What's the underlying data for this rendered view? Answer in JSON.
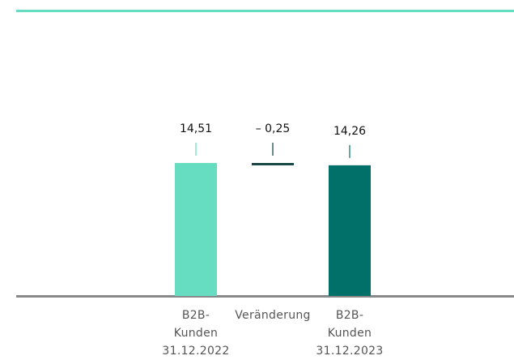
{
  "chart_data": {
    "type": "waterfall",
    "categories": [
      [
        "B2B-",
        "Kunden",
        "31.12.2022"
      ],
      [
        "Veränderung"
      ],
      [
        "B2B-",
        "Kunden",
        "31.12.2023"
      ]
    ],
    "values": [
      14.51,
      -0.25,
      14.26
    ],
    "value_labels": [
      "14,51",
      "– 0,25",
      "14,26"
    ],
    "colors": [
      "#66ddc0",
      "#0b3d3d",
      "#007068"
    ],
    "ylim": [
      0,
      20
    ]
  }
}
